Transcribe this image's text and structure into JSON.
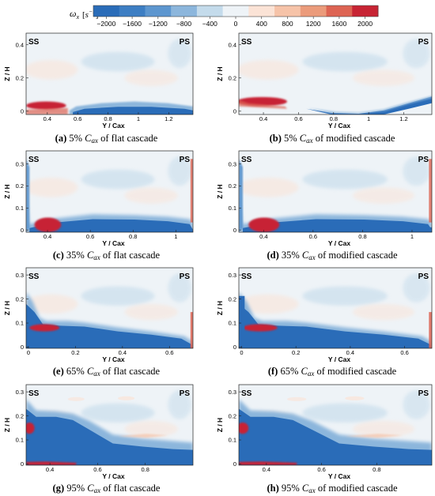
{
  "colorbar": {
    "symbol": "ω",
    "subscript": "x",
    "unit": "s",
    "unit_exp": "−1",
    "ticks": [
      "−2000",
      "−1600",
      "−1200",
      "−800",
      "−400",
      "0",
      "400",
      "800",
      "1200",
      "1600",
      "2000"
    ],
    "colors": [
      "#2a6cb8",
      "#3d7ec3",
      "#5d96cf",
      "#8cb6dc",
      "#c4dbeb",
      "#eef3f7",
      "#fbe3d6",
      "#f6c3a8",
      "#eb9b7b",
      "#dd6453",
      "#c72434"
    ]
  },
  "chart_data": [
    {
      "type": "heatmap",
      "caption_label": "(a)",
      "caption_text": "5% Cax of flat cascade",
      "xlabel": "Y / Cax",
      "ylabel": "Z / H",
      "xlim": [
        0.26,
        1.36
      ],
      "ylim": [
        -0.02,
        0.47
      ],
      "xticks": [
        "0.4",
        "0.6",
        "0.8",
        "1",
        "1.2"
      ],
      "xtick_values": [
        0.4,
        0.6,
        0.8,
        1.0,
        1.2
      ],
      "yticks": [
        "0",
        "0.2",
        "0.4"
      ],
      "ytick_values": [
        0,
        0.2,
        0.4
      ],
      "corner_left": "SS",
      "corner_right": "PS"
    },
    {
      "type": "heatmap",
      "caption_label": "(b)",
      "caption_text": "5% Cax of modified cascade",
      "xlabel": "Y / Cax",
      "ylabel": "Z / H",
      "xlim": [
        0.26,
        1.36
      ],
      "ylim": [
        -0.02,
        0.47
      ],
      "xticks": [
        "0.4",
        "0.6",
        "0.8",
        "1",
        "1.2"
      ],
      "xtick_values": [
        0.4,
        0.6,
        0.8,
        1.0,
        1.2
      ],
      "yticks": [
        "0",
        "0.2",
        "0.4"
      ],
      "ytick_values": [
        0,
        0.2,
        0.4
      ],
      "corner_left": "SS",
      "corner_right": "PS"
    },
    {
      "type": "heatmap",
      "caption_label": "(c)",
      "caption_text": "35% Cax of flat cascade",
      "xlabel": "Y / Cax",
      "ylabel": "Z / H",
      "xlim": [
        0.3,
        1.08
      ],
      "ylim": [
        -0.01,
        0.36
      ],
      "xticks": [
        "0.4",
        "0.6",
        "0.8",
        "1"
      ],
      "xtick_values": [
        0.4,
        0.6,
        0.8,
        1.0
      ],
      "yticks": [
        "0",
        "0.1",
        "0.2",
        "0.3"
      ],
      "ytick_values": [
        0,
        0.1,
        0.2,
        0.3
      ],
      "corner_left": "SS",
      "corner_right": "PS"
    },
    {
      "type": "heatmap",
      "caption_label": "(d)",
      "caption_text": "35% Cax of modified cascade",
      "xlabel": "Y / Cax",
      "ylabel": "Z / H",
      "xlim": [
        0.3,
        1.08
      ],
      "ylim": [
        -0.01,
        0.36
      ],
      "xticks": [
        "0.4",
        "0.6",
        "0.8",
        "1"
      ],
      "xtick_values": [
        0.4,
        0.6,
        0.8,
        1.0
      ],
      "yticks": [
        "0",
        "0.1",
        "0.2",
        "0.3"
      ],
      "ytick_values": [
        0,
        0.1,
        0.2,
        0.3
      ],
      "corner_left": "SS",
      "corner_right": "PS"
    },
    {
      "type": "heatmap",
      "caption_label": "(e)",
      "caption_text": "65% Cax of flat cascade",
      "xlabel": "Y / Cax",
      "ylabel": "Z / H",
      "xlim": [
        -0.01,
        0.7
      ],
      "ylim": [
        -0.005,
        0.33
      ],
      "xticks": [
        "0",
        "0.2",
        "0.4",
        "0.6"
      ],
      "xtick_values": [
        0,
        0.2,
        0.4,
        0.6
      ],
      "yticks": [
        "0",
        "0.1",
        "0.2",
        "0.3"
      ],
      "ytick_values": [
        0,
        0.1,
        0.2,
        0.3
      ],
      "corner_left": "SS",
      "corner_right": "PS"
    },
    {
      "type": "heatmap",
      "caption_label": "(f)",
      "caption_text": "65% Cax of modified cascade",
      "xlabel": "Y / Cax",
      "ylabel": "Z / H",
      "xlim": [
        -0.01,
        0.7
      ],
      "ylim": [
        -0.005,
        0.33
      ],
      "xticks": [
        "0",
        "0.2",
        "0.4",
        "0.6"
      ],
      "xtick_values": [
        0,
        0.2,
        0.4,
        0.6
      ],
      "yticks": [
        "0",
        "0.1",
        "0.2",
        "0.3"
      ],
      "ytick_values": [
        0,
        0.1,
        0.2,
        0.3
      ],
      "corner_left": "SS",
      "corner_right": "PS"
    },
    {
      "type": "heatmap",
      "caption_label": "(g)",
      "caption_text": "95% Cax of flat cascade",
      "xlabel": "Y / Cax",
      "ylabel": "Z / H",
      "xlim": [
        0.3,
        1.0
      ],
      "ylim": [
        -0.005,
        0.33
      ],
      "xticks": [
        "0.4",
        "0.6",
        "0.8"
      ],
      "xtick_values": [
        0.4,
        0.6,
        0.8
      ],
      "yticks": [
        "0",
        "0.1",
        "0.2",
        "0.3"
      ],
      "ytick_values": [
        0,
        0.1,
        0.2,
        0.3
      ],
      "corner_left": "SS",
      "corner_right": "PS"
    },
    {
      "type": "heatmap",
      "caption_label": "(h)",
      "caption_text": "95% Cax of modified cascade",
      "xlabel": "Y / Cax",
      "ylabel": "Z / H",
      "xlim": [
        0.3,
        1.0
      ],
      "ylim": [
        -0.005,
        0.33
      ],
      "xticks": [
        "0.4",
        "0.6",
        "0.8"
      ],
      "xtick_values": [
        0.4,
        0.6,
        0.8
      ],
      "yticks": [
        "0",
        "0.1",
        "0.2",
        "0.3"
      ],
      "ytick_values": [
        0,
        0.1,
        0.2,
        0.3
      ],
      "corner_left": "SS",
      "corner_right": "PS"
    }
  ]
}
